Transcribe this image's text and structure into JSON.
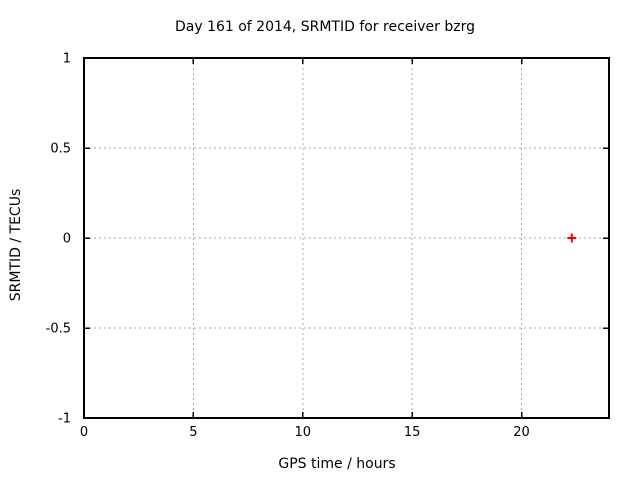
{
  "chart_data": {
    "type": "scatter",
    "title": "Day 161 of 2014, SRMTID for receiver bzrg",
    "xlabel": "GPS time / hours",
    "ylabel": "SRMTID / TECUs",
    "xlim": [
      0,
      24
    ],
    "ylim": [
      -1,
      1
    ],
    "xticks": [
      0,
      5,
      10,
      15,
      20
    ],
    "xtick_labels": [
      "0",
      "5",
      "10",
      "15",
      "20"
    ],
    "yticks": [
      -1,
      -0.5,
      0,
      0.5,
      1
    ],
    "ytick_labels": [
      "-1",
      "-0.5",
      "0",
      "0.5",
      "1"
    ],
    "grid": true,
    "grid_color": "#a8a8a8",
    "axis_color": "#000000",
    "background_color": "#ffffff",
    "series": [
      {
        "name": "SRMTID",
        "marker": "plus",
        "color": "#ff0000",
        "marker_size": 9,
        "points": [
          [
            22.3,
            0.0
          ]
        ]
      }
    ]
  }
}
